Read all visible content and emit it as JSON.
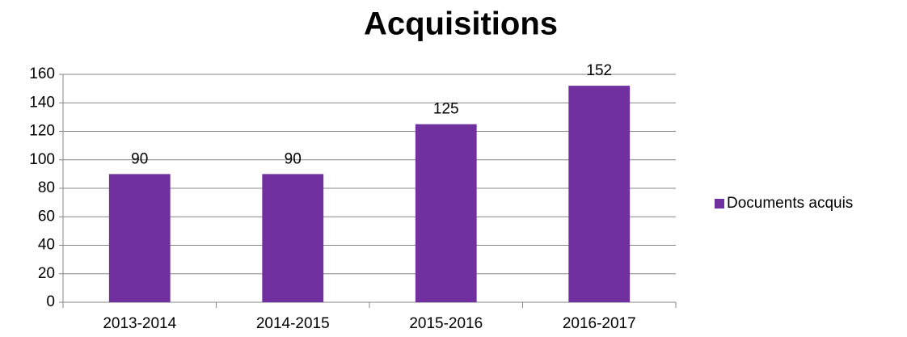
{
  "chart_data": {
    "type": "bar",
    "title": "Acquisitions",
    "categories": [
      "2013-2014",
      "2014-2015",
      "2015-2016",
      "2016-2017"
    ],
    "series": [
      {
        "name": "Documents acquis",
        "color": "#7030a0",
        "values": [
          90,
          90,
          125,
          152
        ]
      }
    ],
    "ylim": [
      0,
      160
    ],
    "yticks": [
      0,
      20,
      40,
      60,
      80,
      100,
      120,
      140,
      160
    ],
    "grid": true,
    "legend": "right"
  }
}
